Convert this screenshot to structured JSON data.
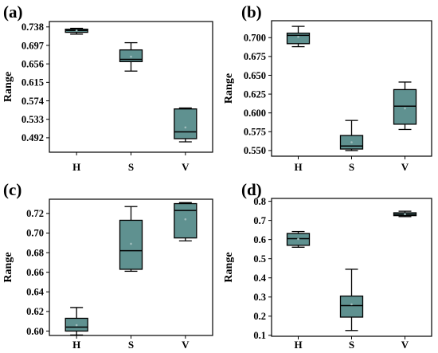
{
  "figure": {
    "box_color": "#5f9190",
    "mean_marker_color": "#9fbcbb",
    "line_color": "#000000"
  },
  "chart_data": [
    {
      "panel": "(a)",
      "type": "box",
      "ylabel": "Range",
      "categories": [
        "H",
        "S",
        "V"
      ],
      "ylim": [
        0.46,
        0.75
      ],
      "yticks": [
        "0.738",
        "0.697",
        "0.656",
        "0.615",
        "0.574",
        "0.533",
        "0.492"
      ],
      "boxes": [
        {
          "category": "H",
          "whislo": 0.722,
          "q1": 0.726,
          "med": 0.73,
          "q3": 0.733,
          "whishi": 0.735,
          "mean": 0.73
        },
        {
          "category": "S",
          "whislo": 0.64,
          "q1": 0.661,
          "med": 0.666,
          "q3": 0.687,
          "whishi": 0.703,
          "mean": 0.672
        },
        {
          "category": "V",
          "whislo": 0.483,
          "q1": 0.49,
          "med": 0.505,
          "q3": 0.556,
          "whishi": 0.558,
          "mean": 0.515
        }
      ]
    },
    {
      "panel": "(b)",
      "type": "box",
      "ylabel": "Range",
      "categories": [
        "H",
        "S",
        "V"
      ],
      "ylim": [
        0.5425,
        0.7225
      ],
      "yticks": [
        "0.700",
        "0.675",
        "0.650",
        "0.625",
        "0.600",
        "0.575",
        "0.550"
      ],
      "boxes": [
        {
          "category": "H",
          "whislo": 0.688,
          "q1": 0.692,
          "med": 0.703,
          "q3": 0.706,
          "whishi": 0.715,
          "mean": 0.701
        },
        {
          "category": "S",
          "whislo": 0.55,
          "q1": 0.552,
          "med": 0.556,
          "q3": 0.57,
          "whishi": 0.59,
          "mean": 0.561
        },
        {
          "category": "V",
          "whislo": 0.578,
          "q1": 0.585,
          "med": 0.609,
          "q3": 0.631,
          "whishi": 0.641,
          "mean": 0.606
        }
      ]
    },
    {
      "panel": "(c)",
      "type": "box",
      "ylabel": "Range",
      "categories": [
        "H",
        "S",
        "V"
      ],
      "ylim": [
        0.5955,
        0.7345
      ],
      "yticks": [
        "0.72",
        "0.70",
        "0.68",
        "0.66",
        "0.64",
        "0.62",
        "0.60"
      ],
      "boxes": [
        {
          "category": "H",
          "whislo": 0.596,
          "q1": 0.6,
          "med": 0.604,
          "q3": 0.613,
          "whishi": 0.624,
          "mean": 0.606
        },
        {
          "category": "S",
          "whislo": 0.661,
          "q1": 0.663,
          "med": 0.682,
          "q3": 0.713,
          "whishi": 0.727,
          "mean": 0.689
        },
        {
          "category": "V",
          "whislo": 0.692,
          "q1": 0.695,
          "med": 0.723,
          "q3": 0.73,
          "whishi": 0.731,
          "mean": 0.714
        }
      ]
    },
    {
      "panel": "(d)",
      "type": "box",
      "ylabel": "Range",
      "categories": [
        "H",
        "S",
        "V"
      ],
      "ylim": [
        0.095,
        0.815
      ],
      "yticks": [
        "0.8",
        "0.7",
        "0.6",
        "0.5",
        "0.4",
        "0.3",
        "0.2",
        "0.1"
      ],
      "boxes": [
        {
          "category": "H",
          "whislo": 0.56,
          "q1": 0.57,
          "med": 0.605,
          "q3": 0.632,
          "whishi": 0.642,
          "mean": 0.603
        },
        {
          "category": "S",
          "whislo": 0.125,
          "q1": 0.195,
          "med": 0.255,
          "q3": 0.305,
          "whishi": 0.445,
          "mean": 0.262
        },
        {
          "category": "V",
          "whislo": 0.72,
          "q1": 0.725,
          "med": 0.732,
          "q3": 0.74,
          "whishi": 0.748,
          "mean": 0.733
        }
      ]
    }
  ]
}
